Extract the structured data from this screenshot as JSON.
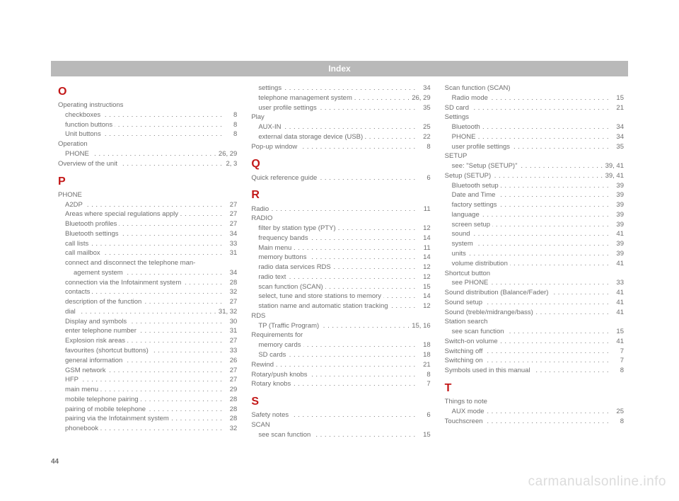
{
  "header": "Index",
  "page_number": "44",
  "watermark": "carmanualsonline.info",
  "columns": [
    {
      "items": [
        {
          "type": "letter",
          "text": "O",
          "first": true
        },
        {
          "type": "heading",
          "label": "Operating instructions"
        },
        {
          "type": "sub",
          "label": "checkboxes",
          "page": "8"
        },
        {
          "type": "sub",
          "label": "function buttons",
          "page": "8"
        },
        {
          "type": "sub",
          "label": "Unit buttons",
          "page": "8"
        },
        {
          "type": "heading",
          "label": "Operation"
        },
        {
          "type": "sub",
          "label": "PHONE",
          "page": "26, 29"
        },
        {
          "type": "entry",
          "label": "Overview of the unit",
          "page": "2, 3"
        },
        {
          "type": "letter",
          "text": "P"
        },
        {
          "type": "heading",
          "label": "PHONE"
        },
        {
          "type": "sub",
          "label": "A2DP",
          "page": "27"
        },
        {
          "type": "sub",
          "label": "Areas where special regulations apply",
          "page": "27"
        },
        {
          "type": "sub",
          "label": "Bluetooth profiles",
          "page": "27"
        },
        {
          "type": "sub",
          "label": "Bluetooth settings",
          "page": "34"
        },
        {
          "type": "sub",
          "label": "call lists",
          "page": "33"
        },
        {
          "type": "sub",
          "label": "call mailbox",
          "page": "31"
        },
        {
          "type": "sub",
          "label": "connect and disconnect the telephone man-"
        },
        {
          "type": "sub2",
          "label": "agement system",
          "page": "34"
        },
        {
          "type": "sub",
          "label": "connection via the Infotainment system",
          "page": "28"
        },
        {
          "type": "sub",
          "label": "contacts",
          "page": "32"
        },
        {
          "type": "sub",
          "label": "description of the function",
          "page": "27"
        },
        {
          "type": "sub",
          "label": "dial",
          "page": "31, 32"
        },
        {
          "type": "sub",
          "label": "Display and symbols",
          "page": "30"
        },
        {
          "type": "sub",
          "label": "enter telephone number",
          "page": "31"
        },
        {
          "type": "sub",
          "label": "Explosion risk areas",
          "page": "27"
        },
        {
          "type": "sub",
          "label": "favourites (shortcut buttons)",
          "page": "33"
        },
        {
          "type": "sub",
          "label": "general information",
          "page": "26"
        },
        {
          "type": "sub",
          "label": "GSM network",
          "page": "27"
        },
        {
          "type": "sub",
          "label": "HFP",
          "page": "27"
        },
        {
          "type": "sub",
          "label": "main menu",
          "page": "29"
        },
        {
          "type": "sub",
          "label": "mobile telephone pairing",
          "page": "28"
        },
        {
          "type": "sub",
          "label": "pairing of mobile telephone",
          "page": "28"
        },
        {
          "type": "sub",
          "label": "pairing via the Infotainment system",
          "page": "28"
        },
        {
          "type": "sub",
          "label": "phonebook",
          "page": "32"
        }
      ]
    },
    {
      "items": [
        {
          "type": "sub",
          "label": "settings",
          "page": "34"
        },
        {
          "type": "sub",
          "label": "telephone management system",
          "page": "26, 29"
        },
        {
          "type": "sub",
          "label": "user profile settings",
          "page": "35"
        },
        {
          "type": "heading",
          "label": "Play"
        },
        {
          "type": "sub",
          "label": "AUX-IN",
          "page": "25"
        },
        {
          "type": "sub",
          "label": "external data storage device (USB)",
          "page": "22"
        },
        {
          "type": "entry",
          "label": "Pop-up window",
          "page": "8"
        },
        {
          "type": "letter",
          "text": "Q"
        },
        {
          "type": "entry",
          "label": "Quick reference guide",
          "page": "6"
        },
        {
          "type": "letter",
          "text": "R"
        },
        {
          "type": "entry",
          "label": "Radio",
          "page": "11"
        },
        {
          "type": "heading",
          "label": "RADIO"
        },
        {
          "type": "sub",
          "label": "filter by station type (PTY)",
          "page": "12"
        },
        {
          "type": "sub",
          "label": "frequency bands",
          "page": "14"
        },
        {
          "type": "sub",
          "label": "Main menu",
          "page": "11"
        },
        {
          "type": "sub",
          "label": "memory buttons",
          "page": "14"
        },
        {
          "type": "sub",
          "label": "radio data services RDS",
          "page": "12"
        },
        {
          "type": "sub",
          "label": "radio text",
          "page": "12"
        },
        {
          "type": "sub",
          "label": "scan function (SCAN)",
          "page": "15"
        },
        {
          "type": "sub",
          "label": "select, tune and store stations to memory",
          "page": "14"
        },
        {
          "type": "sub",
          "label": "station name and automatic station tracking",
          "page": "12"
        },
        {
          "type": "heading",
          "label": "RDS"
        },
        {
          "type": "sub",
          "label": "TP (Traffic Program)",
          "page": "15, 16"
        },
        {
          "type": "heading",
          "label": "Requirements for"
        },
        {
          "type": "sub",
          "label": "memory cards",
          "page": "18"
        },
        {
          "type": "sub",
          "label": "SD cards",
          "page": "18"
        },
        {
          "type": "entry",
          "label": "Rewind",
          "page": "21"
        },
        {
          "type": "entry",
          "label": "Rotary/push knobs",
          "page": "8"
        },
        {
          "type": "entry",
          "label": "Rotary knobs",
          "page": "7"
        },
        {
          "type": "letter",
          "text": "S"
        },
        {
          "type": "entry",
          "label": "Safety notes",
          "page": "6"
        },
        {
          "type": "heading",
          "label": "SCAN"
        },
        {
          "type": "sub",
          "label": "see scan function",
          "page": "15"
        }
      ]
    },
    {
      "items": [
        {
          "type": "heading",
          "label": "Scan function (SCAN)"
        },
        {
          "type": "sub",
          "label": "Radio mode",
          "page": "15"
        },
        {
          "type": "entry",
          "label": "SD card",
          "page": "21"
        },
        {
          "type": "heading",
          "label": "Settings"
        },
        {
          "type": "sub",
          "label": "Bluetooth",
          "page": "34"
        },
        {
          "type": "sub",
          "label": "PHONE",
          "page": "34"
        },
        {
          "type": "sub",
          "label": "user profile settings",
          "page": "35"
        },
        {
          "type": "heading",
          "label": "SETUP"
        },
        {
          "type": "sub",
          "label": "see: \"Setup (SETUP)\"",
          "page": "39, 41"
        },
        {
          "type": "entry",
          "label": "Setup (SETUP)",
          "page": "39, 41"
        },
        {
          "type": "sub",
          "label": "Bluetooth setup",
          "page": "39"
        },
        {
          "type": "sub",
          "label": "Date and Time",
          "page": "39"
        },
        {
          "type": "sub",
          "label": "factory settings",
          "page": "39"
        },
        {
          "type": "sub",
          "label": "language",
          "page": "39"
        },
        {
          "type": "sub",
          "label": "screen setup",
          "page": "39"
        },
        {
          "type": "sub",
          "label": "sound",
          "page": "41"
        },
        {
          "type": "sub",
          "label": "system",
          "page": "39"
        },
        {
          "type": "sub",
          "label": "units",
          "page": "39"
        },
        {
          "type": "sub",
          "label": "volume distribution",
          "page": "41"
        },
        {
          "type": "heading",
          "label": "Shortcut button"
        },
        {
          "type": "sub",
          "label": "see PHONE",
          "page": "33"
        },
        {
          "type": "entry",
          "label": "Sound distribution (Balance/Fader)",
          "page": "41"
        },
        {
          "type": "entry",
          "label": "Sound setup",
          "page": "41"
        },
        {
          "type": "entry",
          "label": "Sound (treble/midrange/bass)",
          "page": "41"
        },
        {
          "type": "heading",
          "label": "Station search"
        },
        {
          "type": "sub",
          "label": "see scan function",
          "page": "15"
        },
        {
          "type": "entry",
          "label": "Switch-on volume",
          "page": "41"
        },
        {
          "type": "entry",
          "label": "Switching off",
          "page": "7"
        },
        {
          "type": "entry",
          "label": "Switching on",
          "page": "7"
        },
        {
          "type": "entry",
          "label": "Symbols used in this manual",
          "page": "8"
        },
        {
          "type": "letter",
          "text": "T"
        },
        {
          "type": "heading",
          "label": "Things to note"
        },
        {
          "type": "sub",
          "label": "AUX mode",
          "page": "25"
        },
        {
          "type": "entry",
          "label": "Touchscreen",
          "page": "8"
        }
      ]
    }
  ]
}
